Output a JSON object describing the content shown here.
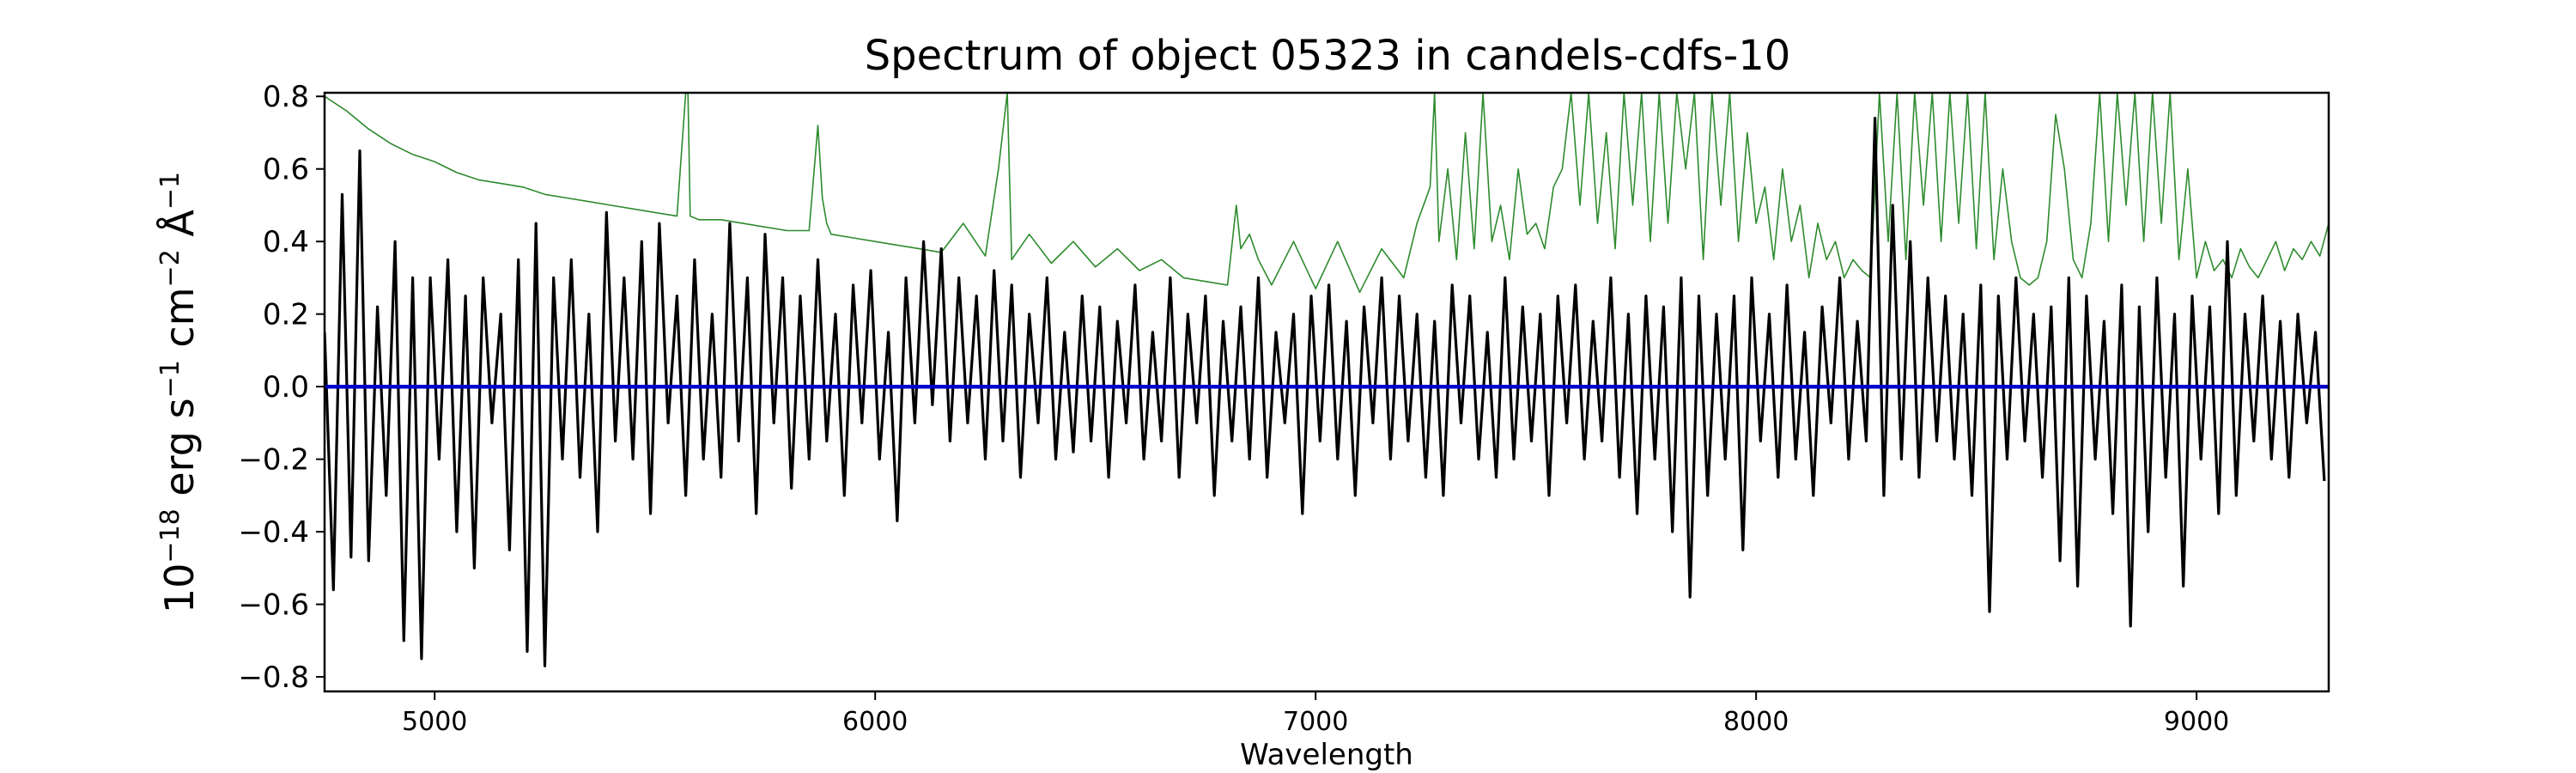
{
  "chart_data": {
    "type": "line",
    "title": "Spectrum of object 05323 in candels-cdfs-10",
    "xlabel": "Wavelength",
    "ylabel": {
      "base": "10",
      "base_exp": "−18",
      "unit1": " erg s",
      "unit1_exp": "−1",
      "unit2": " cm",
      "unit2_exp": "−2",
      "unit3": " Å",
      "unit3_exp": "−1"
    },
    "xlim": [
      4750,
      9300
    ],
    "ylim": [
      -0.84,
      0.81
    ],
    "x_ticks": [
      5000,
      6000,
      7000,
      8000,
      9000
    ],
    "x_tick_labels": [
      "5000",
      "6000",
      "7000",
      "8000",
      "9000"
    ],
    "y_ticks": [
      -0.8,
      -0.6,
      -0.4,
      -0.2,
      0.0,
      0.2,
      0.4,
      0.6,
      0.8
    ],
    "y_tick_labels": [
      "−0.8",
      "−0.6",
      "−0.4",
      "−0.2",
      "0.0",
      "0.2",
      "0.4",
      "0.6",
      "0.8"
    ],
    "grid": false,
    "colors": {
      "flux": "#000000",
      "error": "#2e8b2e",
      "zero": "#0000cc"
    },
    "series": [
      {
        "name": "",
        "role": "flux",
        "x": [
          4750,
          4770,
          4790,
          4810,
          4830,
          4850,
          4870,
          4890,
          4910,
          4930,
          4950,
          4970,
          4990,
          5010,
          5030,
          5050,
          5070,
          5090,
          5110,
          5130,
          5150,
          5170,
          5190,
          5210,
          5230,
          5250,
          5270,
          5290,
          5310,
          5330,
          5350,
          5370,
          5390,
          5410,
          5430,
          5450,
          5470,
          5490,
          5510,
          5530,
          5550,
          5570,
          5590,
          5610,
          5630,
          5650,
          5670,
          5690,
          5710,
          5730,
          5750,
          5770,
          5790,
          5810,
          5830,
          5850,
          5870,
          5890,
          5910,
          5930,
          5950,
          5970,
          5990,
          6010,
          6030,
          6050,
          6070,
          6090,
          6110,
          6130,
          6150,
          6170,
          6190,
          6210,
          6230,
          6250,
          6270,
          6290,
          6310,
          6330,
          6350,
          6370,
          6390,
          6410,
          6430,
          6450,
          6470,
          6490,
          6510,
          6530,
          6550,
          6570,
          6590,
          6610,
          6630,
          6650,
          6670,
          6690,
          6710,
          6730,
          6750,
          6770,
          6790,
          6810,
          6830,
          6850,
          6870,
          6890,
          6910,
          6930,
          6950,
          6970,
          6990,
          7010,
          7030,
          7050,
          7070,
          7090,
          7110,
          7130,
          7150,
          7170,
          7190,
          7210,
          7230,
          7250,
          7270,
          7290,
          7310,
          7330,
          7350,
          7370,
          7390,
          7410,
          7430,
          7450,
          7470,
          7490,
          7510,
          7530,
          7550,
          7570,
          7590,
          7610,
          7630,
          7650,
          7670,
          7690,
          7710,
          7730,
          7750,
          7770,
          7790,
          7810,
          7830,
          7850,
          7870,
          7890,
          7910,
          7930,
          7950,
          7970,
          7990,
          8010,
          8030,
          8050,
          8070,
          8090,
          8110,
          8130,
          8150,
          8170,
          8190,
          8210,
          8230,
          8250,
          8270,
          8290,
          8310,
          8330,
          8350,
          8370,
          8390,
          8410,
          8430,
          8450,
          8470,
          8490,
          8510,
          8530,
          8550,
          8570,
          8590,
          8610,
          8630,
          8650,
          8670,
          8690,
          8710,
          8730,
          8750,
          8770,
          8790,
          8810,
          8830,
          8850,
          8870,
          8890,
          8910,
          8930,
          8950,
          8970,
          8990,
          9010,
          9030,
          9050,
          9070,
          9090,
          9110,
          9130,
          9150,
          9170,
          9190,
          9210,
          9230,
          9250,
          9270,
          9290
        ],
        "y": [
          0.15,
          -0.56,
          0.53,
          -0.47,
          0.65,
          -0.48,
          0.22,
          -0.3,
          0.4,
          -0.7,
          0.3,
          -0.75,
          0.3,
          -0.2,
          0.35,
          -0.4,
          0.25,
          -0.5,
          0.3,
          -0.1,
          0.2,
          -0.45,
          0.35,
          -0.73,
          0.45,
          -0.77,
          0.3,
          -0.2,
          0.35,
          -0.25,
          0.2,
          -0.4,
          0.48,
          -0.15,
          0.3,
          -0.2,
          0.4,
          -0.35,
          0.45,
          -0.1,
          0.25,
          -0.3,
          0.35,
          -0.2,
          0.2,
          -0.25,
          0.45,
          -0.15,
          0.3,
          -0.35,
          0.42,
          -0.1,
          0.3,
          -0.28,
          0.25,
          -0.2,
          0.35,
          -0.15,
          0.2,
          -0.3,
          0.28,
          -0.1,
          0.32,
          -0.2,
          0.15,
          -0.37,
          0.3,
          -0.1,
          0.4,
          -0.05,
          0.38,
          -0.15,
          0.3,
          -0.1,
          0.25,
          -0.2,
          0.32,
          -0.15,
          0.28,
          -0.25,
          0.2,
          -0.1,
          0.3,
          -0.2,
          0.15,
          -0.18,
          0.25,
          -0.15,
          0.22,
          -0.25,
          0.18,
          -0.1,
          0.28,
          -0.2,
          0.15,
          -0.15,
          0.3,
          -0.25,
          0.2,
          -0.1,
          0.25,
          -0.3,
          0.18,
          -0.15,
          0.22,
          -0.2,
          0.3,
          -0.25,
          0.15,
          -0.1,
          0.2,
          -0.35,
          0.25,
          -0.15,
          0.28,
          -0.2,
          0.18,
          -0.3,
          0.22,
          -0.1,
          0.3,
          -0.2,
          0.25,
          -0.15,
          0.2,
          -0.25,
          0.18,
          -0.3,
          0.28,
          -0.1,
          0.25,
          -0.2,
          0.15,
          -0.25,
          0.3,
          -0.2,
          0.22,
          -0.15,
          0.2,
          -0.3,
          0.25,
          -0.1,
          0.28,
          -0.2,
          0.18,
          -0.15,
          0.3,
          -0.25,
          0.2,
          -0.35,
          0.25,
          -0.2,
          0.22,
          -0.4,
          0.3,
          -0.58,
          0.25,
          -0.3,
          0.2,
          -0.2,
          0.25,
          -0.45,
          0.3,
          -0.15,
          0.2,
          -0.25,
          0.28,
          -0.2,
          0.15,
          -0.3,
          0.22,
          -0.1,
          0.3,
          -0.2,
          0.18,
          -0.15,
          0.74,
          -0.3,
          0.5,
          -0.2,
          0.4,
          -0.25,
          0.3,
          -0.15,
          0.25,
          -0.2,
          0.2,
          -0.3,
          0.28,
          -0.62,
          0.25,
          -0.2,
          0.3,
          -0.15,
          0.2,
          -0.25,
          0.22,
          -0.48,
          0.3,
          -0.55,
          0.25,
          -0.2,
          0.18,
          -0.35,
          0.28,
          -0.66,
          0.22,
          -0.4,
          0.3,
          -0.25,
          0.2,
          -0.55,
          0.25,
          -0.2,
          0.22,
          -0.35,
          0.4,
          -0.3,
          0.2,
          -0.15,
          0.25,
          -0.2,
          0.18,
          -0.25,
          0.2,
          -0.1,
          0.15,
          -0.26
        ]
      },
      {
        "name": "",
        "role": "error",
        "x": [
          4750,
          4800,
          4850,
          4900,
          4950,
          5000,
          5050,
          5100,
          5150,
          5200,
          5250,
          5300,
          5350,
          5400,
          5450,
          5500,
          5550,
          5570,
          5575,
          5580,
          5600,
          5650,
          5700,
          5750,
          5800,
          5850,
          5870,
          5880,
          5890,
          5900,
          5950,
          6000,
          6050,
          6100,
          6150,
          6200,
          6250,
          6280,
          6300,
          6310,
          6350,
          6400,
          6450,
          6500,
          6550,
          6600,
          6650,
          6700,
          6750,
          6800,
          6820,
          6830,
          6850,
          6870,
          6900,
          6950,
          7000,
          7050,
          7100,
          7150,
          7200,
          7230,
          7260,
          7270,
          7280,
          7300,
          7320,
          7340,
          7360,
          7380,
          7400,
          7420,
          7440,
          7460,
          7480,
          7500,
          7520,
          7540,
          7560,
          7580,
          7600,
          7620,
          7640,
          7660,
          7680,
          7700,
          7720,
          7740,
          7760,
          7780,
          7800,
          7820,
          7840,
          7860,
          7880,
          7900,
          7920,
          7940,
          7960,
          7980,
          8000,
          8020,
          8040,
          8060,
          8080,
          8100,
          8120,
          8140,
          8160,
          8180,
          8200,
          8220,
          8240,
          8260,
          8280,
          8300,
          8320,
          8340,
          8360,
          8380,
          8400,
          8420,
          8440,
          8460,
          8480,
          8500,
          8520,
          8540,
          8560,
          8580,
          8600,
          8620,
          8640,
          8660,
          8680,
          8700,
          8720,
          8740,
          8760,
          8780,
          8800,
          8820,
          8840,
          8860,
          8880,
          8900,
          8920,
          8940,
          8960,
          8980,
          9000,
          9020,
          9040,
          9060,
          9080,
          9100,
          9120,
          9140,
          9160,
          9180,
          9200,
          9220,
          9240,
          9260,
          9280,
          9300
        ],
        "y": [
          0.8,
          0.76,
          0.71,
          0.67,
          0.64,
          0.62,
          0.59,
          0.57,
          0.56,
          0.55,
          0.53,
          0.52,
          0.51,
          0.5,
          0.49,
          0.48,
          0.47,
          0.81,
          0.81,
          0.47,
          0.46,
          0.46,
          0.45,
          0.44,
          0.43,
          0.43,
          0.72,
          0.52,
          0.45,
          0.42,
          0.41,
          0.4,
          0.39,
          0.38,
          0.37,
          0.45,
          0.36,
          0.6,
          0.81,
          0.35,
          0.42,
          0.34,
          0.4,
          0.33,
          0.38,
          0.32,
          0.35,
          0.3,
          0.29,
          0.28,
          0.5,
          0.38,
          0.42,
          0.35,
          0.28,
          0.4,
          0.27,
          0.4,
          0.26,
          0.38,
          0.3,
          0.45,
          0.55,
          0.81,
          0.4,
          0.6,
          0.35,
          0.7,
          0.38,
          0.81,
          0.4,
          0.5,
          0.35,
          0.6,
          0.42,
          0.45,
          0.38,
          0.55,
          0.6,
          0.81,
          0.5,
          0.81,
          0.45,
          0.7,
          0.38,
          0.81,
          0.5,
          0.81,
          0.4,
          0.81,
          0.45,
          0.81,
          0.6,
          0.81,
          0.35,
          0.81,
          0.5,
          0.81,
          0.4,
          0.7,
          0.45,
          0.55,
          0.35,
          0.6,
          0.4,
          0.5,
          0.3,
          0.45,
          0.35,
          0.4,
          0.3,
          0.35,
          0.32,
          0.3,
          0.81,
          0.4,
          0.81,
          0.35,
          0.81,
          0.5,
          0.81,
          0.4,
          0.81,
          0.45,
          0.81,
          0.38,
          0.81,
          0.35,
          0.6,
          0.4,
          0.3,
          0.28,
          0.3,
          0.4,
          0.75,
          0.6,
          0.35,
          0.3,
          0.45,
          0.81,
          0.4,
          0.81,
          0.5,
          0.81,
          0.4,
          0.81,
          0.45,
          0.81,
          0.35,
          0.6,
          0.3,
          0.4,
          0.32,
          0.35,
          0.3,
          0.38,
          0.33,
          0.3,
          0.35,
          0.4,
          0.32,
          0.38,
          0.35,
          0.4,
          0.36,
          0.45
        ]
      },
      {
        "name": "",
        "role": "zero-line",
        "x": [
          4750,
          9300
        ],
        "y": [
          0,
          0
        ]
      }
    ]
  }
}
